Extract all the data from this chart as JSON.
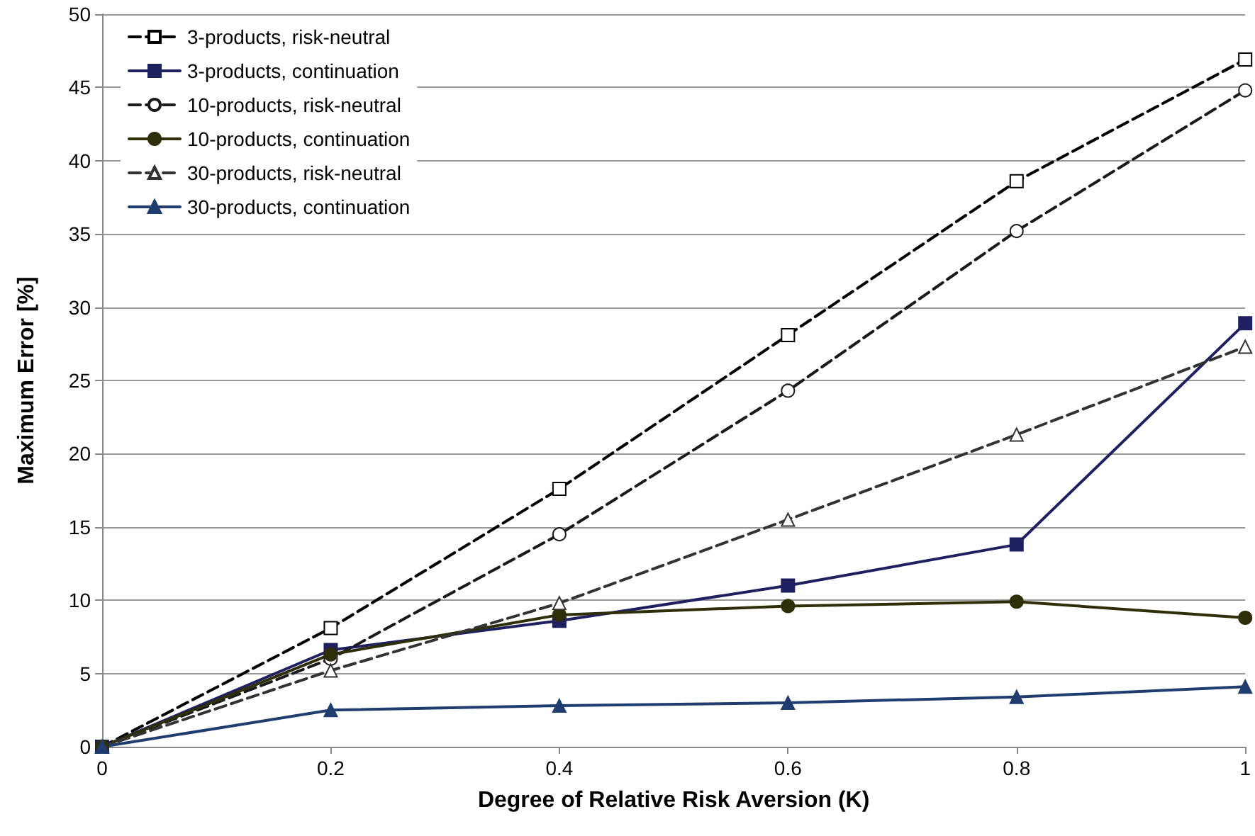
{
  "chart_data": {
    "type": "line",
    "xlabel": "Degree of Relative Risk Aversion (K)",
    "ylabel": "Maximum Error [%]",
    "x": [
      0,
      0.2,
      0.4,
      0.6,
      0.8,
      1
    ],
    "series": [
      {
        "name": "3-products, risk-neutral",
        "color": "#000000",
        "marker": "square",
        "line_style": "dashed",
        "values": [
          0,
          8.1,
          17.6,
          28.1,
          38.6,
          46.9
        ]
      },
      {
        "name": "3-products, continuation",
        "color": "#1f2060",
        "marker": "square",
        "line_style": "solid",
        "values": [
          0,
          6.6,
          8.6,
          11.0,
          13.8,
          28.9
        ]
      },
      {
        "name": "10-products, risk-neutral",
        "color": "#1a1a1a",
        "marker": "circle",
        "line_style": "dashed",
        "values": [
          0,
          6.0,
          14.5,
          24.3,
          35.2,
          44.8
        ]
      },
      {
        "name": "10-products, continuation",
        "color": "#2e2e08",
        "marker": "circle",
        "line_style": "solid",
        "values": [
          0,
          6.3,
          9.0,
          9.6,
          9.9,
          8.8
        ]
      },
      {
        "name": "30-products, risk-neutral",
        "color": "#333333",
        "marker": "triangle",
        "line_style": "dashed",
        "values": [
          0,
          5.2,
          9.8,
          15.5,
          21.3,
          27.3
        ]
      },
      {
        "name": "30-products, continuation",
        "color": "#1f3d6e",
        "marker": "triangle",
        "line_style": "solid",
        "values": [
          0,
          2.5,
          2.8,
          3.0,
          3.4,
          4.1
        ]
      }
    ],
    "xlim": [
      0,
      1
    ],
    "xticks": [
      0,
      0.2,
      0.4,
      0.6,
      0.8,
      1
    ],
    "ylim": [
      0,
      50
    ],
    "yticks": [
      0,
      5,
      10,
      15,
      20,
      25,
      30,
      35,
      40,
      45,
      50
    ],
    "grid": "y",
    "legend": "top left"
  }
}
